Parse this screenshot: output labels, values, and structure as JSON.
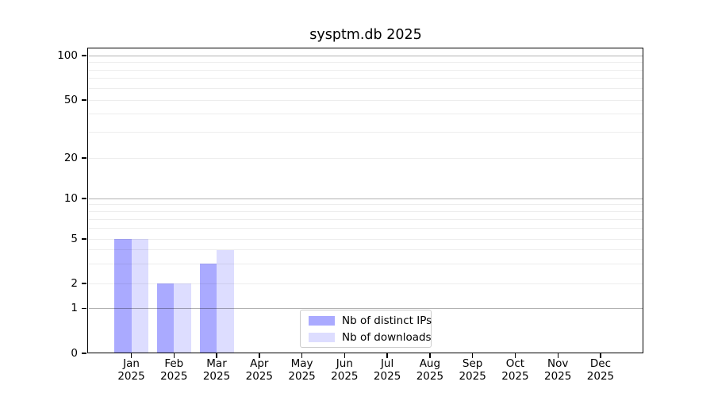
{
  "chart_data": {
    "type": "bar",
    "title": "sysptm.db 2025",
    "x_tick_months": [
      "Jan",
      "Feb",
      "Mar",
      "Apr",
      "May",
      "Jun",
      "Jul",
      "Aug",
      "Sep",
      "Oct",
      "Nov",
      "Dec"
    ],
    "x_tick_year": "2025",
    "y_tick_labels": [
      "0",
      "1",
      "2",
      "5",
      "10",
      "20",
      "50",
      "100"
    ],
    "y_tick_values": [
      0,
      1,
      2,
      5,
      10,
      20,
      50,
      100
    ],
    "y_scale": "log-like with 0 baseline",
    "grid": true,
    "legend_position": "lower center",
    "series": [
      {
        "name": "Nb of distinct IPs",
        "color": "#aaaaff",
        "values": [
          5,
          2,
          3,
          0,
          0,
          0,
          0,
          0,
          0,
          0,
          0,
          0
        ]
      },
      {
        "name": "Nb of downloads",
        "color": "#ddddff",
        "values": [
          5,
          2,
          4,
          0,
          0,
          0,
          0,
          0,
          0,
          0,
          0,
          0
        ]
      }
    ]
  }
}
